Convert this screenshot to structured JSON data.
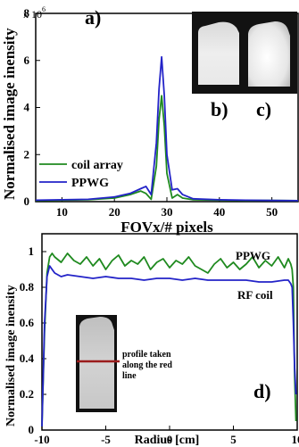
{
  "chart_data": [
    {
      "panel": "a)",
      "type": "line",
      "xlabel": "FOVx/# pixels",
      "ylabel": "Normalised image inensity",
      "xlim": [
        5,
        55
      ],
      "ylim": [
        0,
        8000000
      ],
      "xticks": [
        10,
        20,
        30,
        40,
        50
      ],
      "yticks": [
        0,
        2,
        4,
        6,
        8
      ],
      "y_multiplier": "x 10",
      "y_multiplier_exp": "6",
      "legend_position": "left",
      "series": [
        {
          "name": "coil array",
          "color": "#1f8a1f",
          "x": [
            5,
            10,
            15,
            20,
            23,
            25,
            26,
            27,
            28,
            28.5,
            29,
            29.5,
            30,
            31,
            32,
            33,
            35,
            40,
            45,
            50,
            55
          ],
          "y": [
            50000,
            60000,
            80000,
            150000,
            300000,
            450000,
            350000,
            100000,
            1500000,
            3500000,
            4500000,
            3200000,
            1200000,
            150000,
            300000,
            150000,
            80000,
            60000,
            50000,
            50000,
            40000
          ]
        },
        {
          "name": "PPWG",
          "color": "#2323c8",
          "x": [
            5,
            10,
            15,
            20,
            23,
            25,
            26,
            27,
            28,
            28.5,
            29,
            29.5,
            30,
            31,
            32,
            33,
            35,
            40,
            45,
            50,
            55
          ],
          "y": [
            60000,
            80000,
            100000,
            200000,
            350000,
            550000,
            650000,
            300000,
            2500000,
            4800000,
            6150000,
            4500000,
            2000000,
            500000,
            550000,
            300000,
            120000,
            80000,
            60000,
            50000,
            40000
          ]
        }
      ],
      "inset_labels": [
        "b)",
        "c)"
      ]
    },
    {
      "panel": "d)",
      "type": "line",
      "xlabel": "Radius [cm]",
      "ylabel": "Normalised image inensity",
      "xlim": [
        -10,
        10
      ],
      "ylim": [
        0,
        1.1
      ],
      "xticks": [
        -10,
        -5,
        0,
        5,
        10
      ],
      "yticks": [
        0,
        0.2,
        0.4,
        0.6,
        0.8,
        1
      ],
      "series": [
        {
          "name": "PPWG",
          "color": "#1f8a1f",
          "x": [
            -10,
            -9.8,
            -9.6,
            -9.4,
            -9.2,
            -9.0,
            -8.5,
            -8.0,
            -7.5,
            -7.0,
            -6.5,
            -6.0,
            -5.5,
            -5.0,
            -4.5,
            -4.0,
            -3.5,
            -3.0,
            -2.5,
            -2.0,
            -1.5,
            -1.0,
            -0.5,
            0,
            0.5,
            1.0,
            1.5,
            2.0,
            2.5,
            3.0,
            3.5,
            4.0,
            4.5,
            5.0,
            5.5,
            6.0,
            6.5,
            7.0,
            7.5,
            8.0,
            8.5,
            9.0,
            9.3,
            9.5,
            9.6,
            9.7,
            9.8,
            9.9
          ],
          "y": [
            0.02,
            0.55,
            0.88,
            0.97,
            0.99,
            0.97,
            0.94,
            0.99,
            0.95,
            0.93,
            0.97,
            0.92,
            0.96,
            0.9,
            0.95,
            0.98,
            0.92,
            0.95,
            0.93,
            0.97,
            0.9,
            0.94,
            0.96,
            0.91,
            0.95,
            0.93,
            0.97,
            0.92,
            0.9,
            0.88,
            0.93,
            0.96,
            0.91,
            0.94,
            0.9,
            0.93,
            0.97,
            0.91,
            0.95,
            0.92,
            0.97,
            0.91,
            0.96,
            0.93,
            0.9,
            0.8,
            0.3,
            0.05
          ]
        },
        {
          "name": "RF coil",
          "color": "#2323c8",
          "x": [
            -10,
            -9.8,
            -9.6,
            -9.4,
            -9.2,
            -9.0,
            -8.5,
            -8.0,
            -7.0,
            -6.0,
            -5.0,
            -4.0,
            -3.0,
            -2.0,
            -1.0,
            0,
            1.0,
            2.0,
            3.0,
            4.0,
            5.0,
            6.0,
            7.0,
            8.0,
            9.0,
            9.3,
            9.5,
            9.6,
            9.7,
            9.8,
            9.9
          ],
          "y": [
            0.02,
            0.6,
            0.86,
            0.92,
            0.9,
            0.88,
            0.86,
            0.87,
            0.86,
            0.85,
            0.86,
            0.85,
            0.85,
            0.84,
            0.85,
            0.85,
            0.84,
            0.85,
            0.84,
            0.84,
            0.84,
            0.84,
            0.83,
            0.83,
            0.84,
            0.84,
            0.82,
            0.8,
            0.6,
            0.35,
            0.2
          ]
        }
      ],
      "inset_note": [
        "profile taken",
        "along the red",
        "line"
      ],
      "inset_line_color": "#9b1c1c"
    }
  ]
}
